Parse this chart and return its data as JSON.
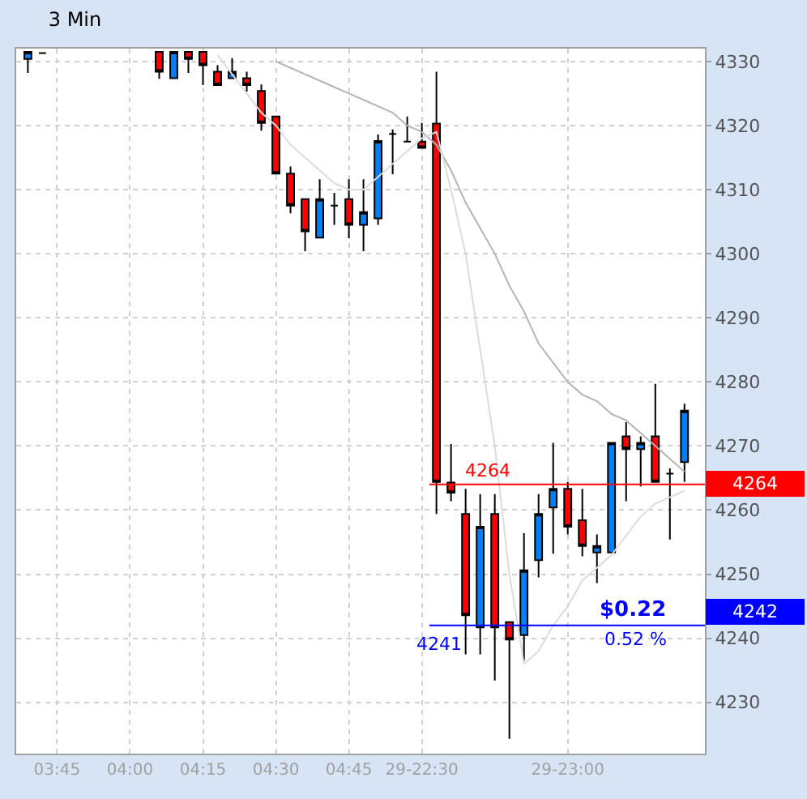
{
  "chart_data": {
    "type": "candlestick",
    "title": "3 Min",
    "categories": [
      null,
      null,
      "03:45",
      null,
      null,
      null,
      null,
      "04:00",
      null,
      null,
      null,
      null,
      "04:15",
      null,
      null,
      null,
      null,
      "04:30",
      null,
      null,
      null,
      null,
      "04:45",
      null,
      null,
      null,
      null,
      "29-22:30",
      null,
      null,
      null,
      null,
      null,
      null,
      null,
      null,
      null,
      "29-23:00",
      null,
      null,
      null,
      null,
      null,
      null,
      null,
      null
    ],
    "series": [
      {
        "type": "line",
        "color": "#b4b4b4",
        "values": [
          null,
          null,
          null,
          null,
          null,
          null,
          null,
          null,
          null,
          null,
          null,
          null,
          null,
          null,
          null,
          null,
          null,
          4330,
          4329,
          4328,
          4327,
          4326,
          4325,
          4324,
          4323,
          4322,
          4320,
          4319,
          4317,
          4313,
          4308,
          4304,
          4300,
          4295,
          4291,
          4286,
          4283,
          4280,
          4278,
          4277,
          4275,
          4274,
          4272,
          4270,
          4268,
          4266
        ]
      },
      {
        "type": "line",
        "color": "#dcdcdc",
        "values": [
          null,
          null,
          null,
          null,
          null,
          null,
          null,
          null,
          null,
          null,
          null,
          null,
          null,
          4331,
          4328,
          4325,
          4322,
          4320,
          4317,
          4315,
          4313,
          4311,
          4310,
          4310,
          4312,
          4314,
          4316,
          4318,
          4319,
          4310,
          4300,
          4285,
          4270,
          4250,
          4236,
          4238,
          4242,
          4245,
          4249,
          4251,
          4253,
          4256,
          4259,
          4261,
          4262,
          4263
        ]
      },
      {
        "colors": [
          "#0080ff",
          "#000000",
          null,
          null,
          null,
          null,
          null,
          null,
          null,
          "#ff0000",
          "#0080ff",
          "#ff0000",
          "#ff0000",
          "#ff0000",
          "#0080ff",
          "#ff0000",
          "#ff0000",
          "#ff0000",
          "#ff0000",
          "#ff0000",
          "#0080ff",
          "#000000",
          "#ff0000",
          "#0080ff",
          "#0080ff",
          "#000000",
          "#000000",
          "#ff0000",
          "#ff0000",
          "#ff0000",
          "#ff0000",
          "#0080ff",
          "#ff0000",
          "#ff0000",
          "#0080ff",
          "#0080ff",
          "#0080ff",
          "#ff0000",
          "#ff0000",
          "#0080ff",
          "#0080ff",
          "#ff0000",
          "#0080ff",
          "#ff0000",
          "#000000",
          "#0080ff"
        ],
        "ohlc": [
          [
            4330.4,
            4331.5,
            4328.2,
            4331.5
          ],
          [
            4331.3,
            4331.3,
            4331.3,
            4331.3
          ],
          null,
          null,
          null,
          null,
          null,
          null,
          null,
          [
            4331.5,
            4331.5,
            4327.3,
            4328.4
          ],
          [
            4327.4,
            4331.5,
            4327.4,
            4331.5
          ],
          [
            4331.5,
            4331.5,
            4328.2,
            4330.4
          ],
          [
            4331.5,
            4331.5,
            4326.3,
            4329.4
          ],
          [
            4328.4,
            4329.4,
            4326.3,
            4326.3
          ],
          [
            4327.4,
            4330.5,
            4327.4,
            4328.4
          ],
          [
            4327.4,
            4328.4,
            4325.3,
            4326.3
          ],
          [
            4325.4,
            4326.4,
            4319.2,
            4320.4
          ],
          [
            4321.4,
            4321.4,
            4312.5,
            4312.5
          ],
          [
            4312.5,
            4313.6,
            4306.3,
            4307.5
          ],
          [
            4308.5,
            4308.5,
            4300.4,
            4303.5
          ],
          [
            4302.5,
            4311.6,
            4302.5,
            4308.5
          ],
          [
            4307.5,
            4309.5,
            4304.5,
            4307.5
          ],
          [
            4308.5,
            4311.6,
            4302.4,
            4304.5
          ],
          [
            4304.5,
            4311.6,
            4300.4,
            4306.5
          ],
          [
            4305.5,
            4318.6,
            4304.5,
            4317.6
          ],
          [
            4318.7,
            4319.4,
            4312.4,
            4318.7
          ],
          [
            4317.5,
            4321.4,
            4317.5,
            4317.5
          ],
          [
            4317.5,
            4320.4,
            4316.5,
            4316.5
          ],
          [
            4320.3,
            4328.4,
            4259.4,
            4264.4
          ],
          [
            4264.3,
            4270.3,
            4261.4,
            4262.7
          ],
          [
            4259.4,
            4263.3,
            4237.5,
            4243.6
          ],
          [
            4241.7,
            4262.5,
            4237.5,
            4257.4
          ],
          [
            4259.4,
            4262.5,
            4233.4,
            4241.7
          ],
          [
            4242.5,
            4242.5,
            4224.3,
            4239.8
          ],
          [
            4240.5,
            4256.4,
            4236.5,
            4250.6
          ],
          [
            4252.2,
            4262.5,
            4249.5,
            4259.4
          ],
          [
            4260.4,
            4270.5,
            4253.2,
            4263.3
          ],
          [
            4263.3,
            4264.4,
            4256.2,
            4257.4
          ],
          [
            4258.4,
            4263.3,
            4252.8,
            4254.4
          ],
          [
            4253.4,
            4256.2,
            4248.6,
            4254.4
          ],
          [
            4253.4,
            4270.5,
            4253.4,
            4270.5
          ],
          [
            4271.5,
            4273.7,
            4261.4,
            4269.5
          ],
          [
            4269.5,
            4271.5,
            4263.7,
            4270.5
          ],
          [
            4271.5,
            4279.7,
            4264.4,
            4264.4
          ],
          [
            4265.7,
            4266.5,
            4255.4,
            4265.7
          ],
          [
            4267.5,
            4276.6,
            4264.4,
            4275.5
          ]
        ]
      }
    ],
    "ylim": [
      4222,
      4332
    ],
    "yticks": [
      4230,
      4240,
      4250,
      4260,
      4270,
      4280,
      4290,
      4300,
      4310,
      4320,
      4330
    ],
    "ref_lines": [
      {
        "axis": "y",
        "value": 4264,
        "label": "4264",
        "color": "#ff0000"
      },
      {
        "axis": "y",
        "value": 4242,
        "label": "4242",
        "color": "#0000ff"
      }
    ],
    "annotations": [
      "4264",
      "4241",
      "$0.22",
      "0.52 %"
    ],
    "grid": true
  }
}
